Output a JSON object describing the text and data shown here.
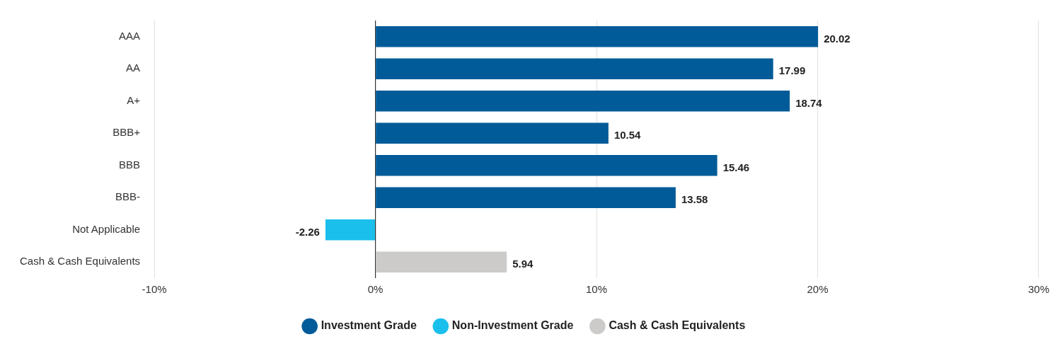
{
  "chart_data": {
    "type": "bar",
    "orientation": "horizontal",
    "categories": [
      "AAA",
      "AA",
      "A+",
      "BBB+",
      "BBB",
      "BBB-",
      "Not Applicable",
      "Cash & Cash Equivalents"
    ],
    "series": [
      {
        "name": "Investment Grade",
        "color": "#005b98",
        "values": [
          20.02,
          17.99,
          18.74,
          10.54,
          15.46,
          13.58,
          null,
          null
        ]
      },
      {
        "name": "Non-Investment Grade",
        "color": "#1bbfec",
        "values": [
          null,
          null,
          null,
          null,
          null,
          null,
          -2.26,
          null
        ]
      },
      {
        "name": "Cash & Cash Equivalents",
        "color": "#cccbc9",
        "values": [
          null,
          null,
          null,
          null,
          null,
          null,
          null,
          5.94
        ]
      }
    ],
    "xlim": [
      -10,
      30
    ],
    "xticks": [
      {
        "value": -10,
        "label": "-10%"
      },
      {
        "value": 0,
        "label": "0%"
      },
      {
        "value": 10,
        "label": "10%"
      },
      {
        "value": 20,
        "label": "20%"
      },
      {
        "value": 30,
        "label": "30%"
      }
    ],
    "grid": "x",
    "legend": "bottom",
    "data_labels": true
  }
}
